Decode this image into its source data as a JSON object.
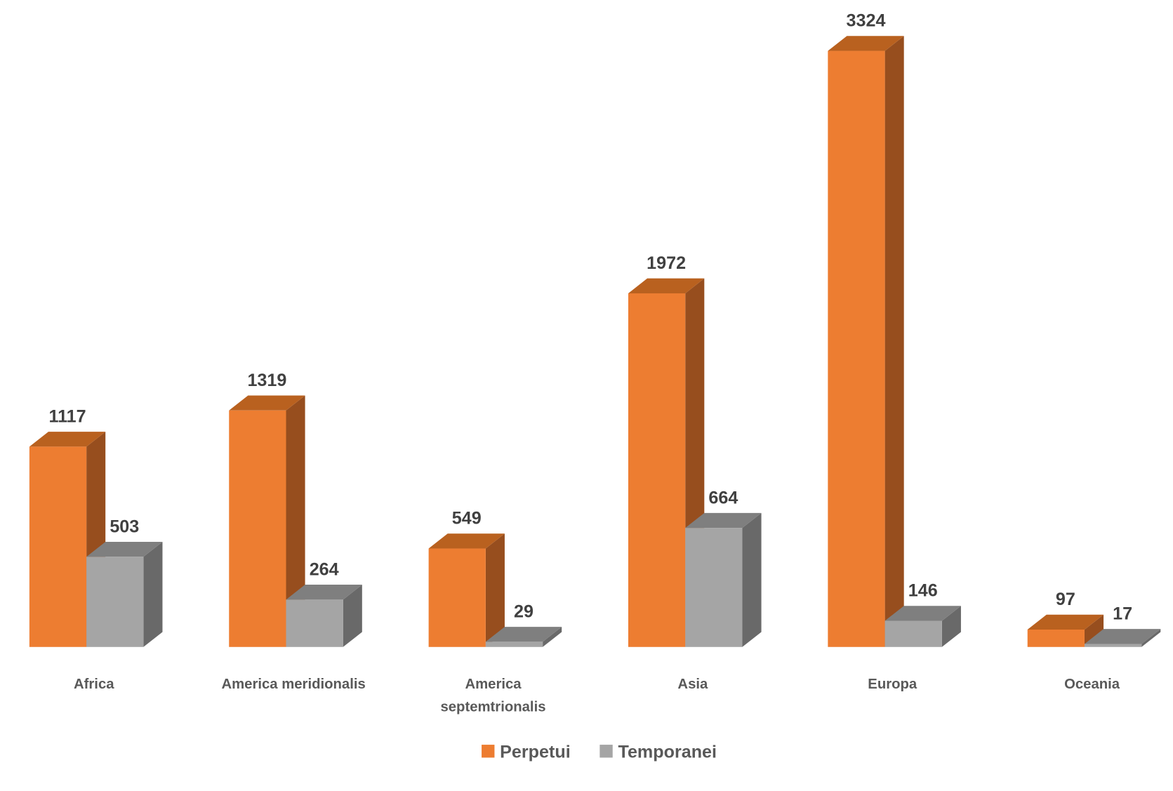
{
  "chart_data": {
    "type": "bar",
    "title": "",
    "xlabel": "",
    "ylabel": "",
    "ylim": [
      0,
      3324
    ],
    "grid": false,
    "legend_position": "bottom",
    "categories": [
      [
        "Africa"
      ],
      [
        "America meridionalis"
      ],
      [
        "America",
        "septemtrionalis"
      ],
      [
        "Asia"
      ],
      [
        "Europa"
      ],
      [
        "Oceania"
      ]
    ],
    "series": [
      {
        "name": "Perpetui",
        "values": [
          1117,
          1319,
          549,
          1972,
          3324,
          97
        ],
        "color": "#ED7D31",
        "side_color": "#974E1E",
        "top_color": "#B9611F"
      },
      {
        "name": "Temporanei",
        "values": [
          503,
          264,
          29,
          664,
          146,
          17
        ],
        "color": "#A5A5A5",
        "side_color": "#696969",
        "top_color": "#7F7F7F"
      }
    ]
  }
}
